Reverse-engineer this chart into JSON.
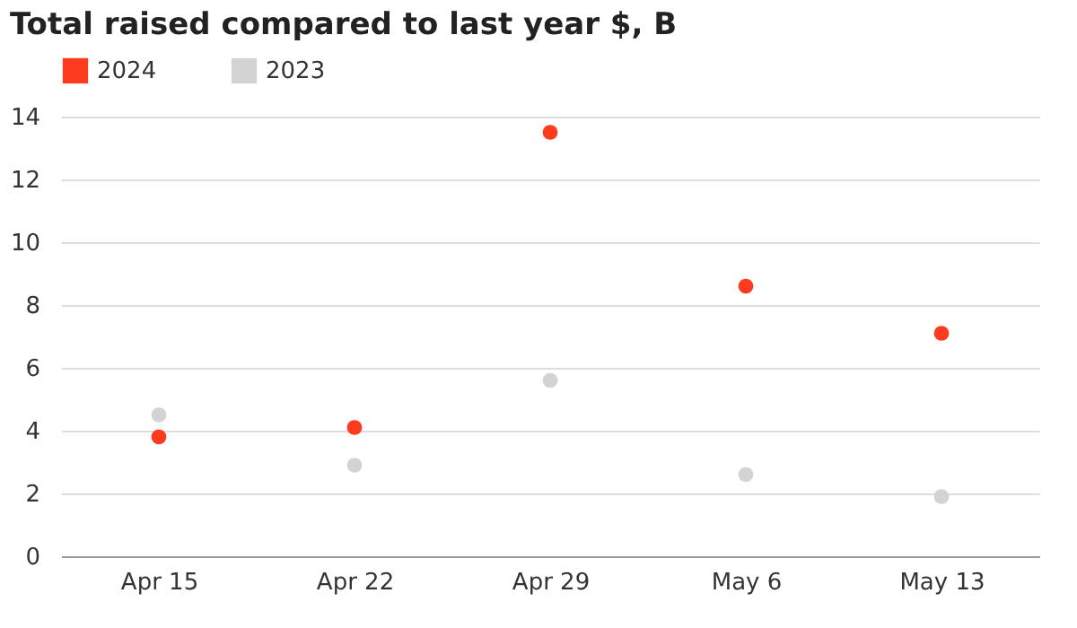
{
  "chart_data": {
    "type": "scatter",
    "title": "Total raised compared to last year $, B",
    "categories": [
      "Apr 15",
      "Apr 22",
      "Apr 29",
      "May 6",
      "May 13"
    ],
    "series": [
      {
        "name": "2024",
        "color": "#ff3b1f",
        "values": [
          3.8,
          4.1,
          13.5,
          8.6,
          7.1
        ]
      },
      {
        "name": "2023",
        "color": "#d3d3d3",
        "values": [
          4.5,
          2.9,
          5.6,
          2.6,
          1.9
        ]
      }
    ],
    "ylim": [
      0,
      14
    ],
    "yticks": [
      0,
      2,
      4,
      6,
      8,
      10,
      12,
      14
    ],
    "grid": "y",
    "legend": "top",
    "marker": "circle"
  }
}
